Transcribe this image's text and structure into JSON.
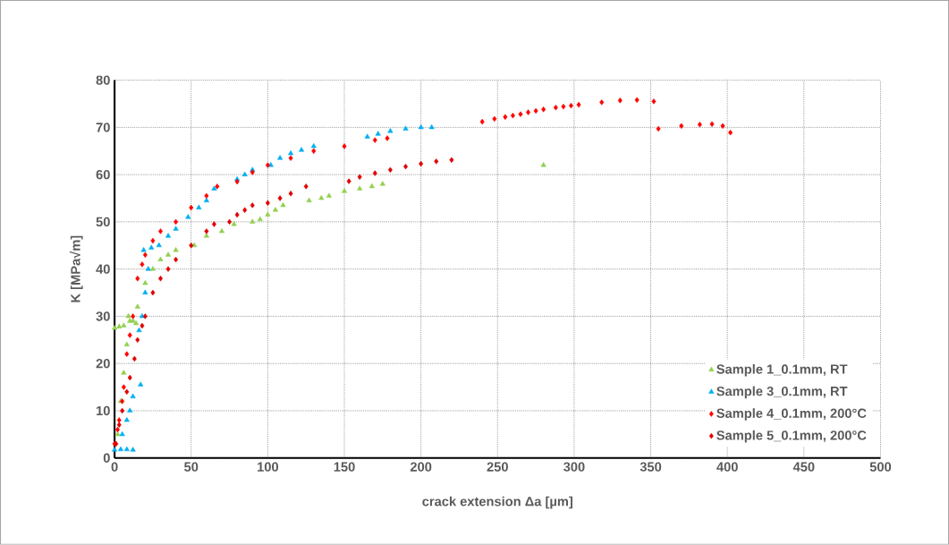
{
  "chart_data": {
    "type": "scatter",
    "xlabel": "crack extension Δa [µm]",
    "ylabel": "K [MPa√m]",
    "xlim": [
      0,
      500
    ],
    "ylim": [
      0,
      80
    ],
    "xticks": [
      0,
      50,
      100,
      150,
      200,
      250,
      300,
      350,
      400,
      450,
      500
    ],
    "yticks": [
      0,
      10,
      20,
      30,
      40,
      50,
      60,
      70,
      80
    ],
    "grid": true,
    "legend": "bottom right",
    "series": [
      {
        "name": "Sample 1_0.1mm, RT",
        "color": "#92d050",
        "marker": "triangle",
        "x": [
          2,
          4,
          6,
          8,
          10,
          0,
          3,
          6,
          9,
          12,
          14,
          15,
          20,
          25,
          30,
          35,
          40,
          52,
          60,
          70,
          78,
          90,
          95,
          100,
          105,
          110,
          127,
          135,
          140,
          150,
          160,
          168,
          175,
          280
        ],
        "values": [
          5,
          12,
          18,
          24,
          29,
          27.5,
          27.8,
          28,
          30,
          29,
          28.5,
          32,
          37,
          40,
          42,
          43,
          44,
          45,
          47,
          48,
          49.5,
          50,
          50.5,
          51.5,
          52.5,
          53.5,
          54.5,
          55,
          55.5,
          56.5,
          57,
          57.5,
          58,
          62
        ]
      },
      {
        "name": "Sample 3_0.1mm, RT",
        "color": "#00b0f0",
        "marker": "triangle",
        "x": [
          0,
          4,
          8,
          12,
          5,
          8,
          10,
          12,
          17,
          16,
          18,
          20,
          22,
          19,
          24,
          29,
          35,
          40,
          48,
          55,
          60,
          65,
          80,
          85,
          90,
          102,
          108,
          115,
          122,
          130,
          165,
          172,
          180,
          190,
          200,
          207
        ],
        "values": [
          1.7,
          1.8,
          1.8,
          1.7,
          5,
          8,
          10,
          13,
          15.5,
          27,
          30,
          35,
          40,
          44,
          44.5,
          45,
          47,
          48.5,
          51,
          53,
          54.5,
          57,
          59,
          60,
          61,
          62,
          63.5,
          64.5,
          65.2,
          66,
          68,
          68.6,
          69.2,
          69.7,
          70,
          70
        ]
      },
      {
        "name": "Sample 4_0.1mm, 200°C",
        "color": "#ff0000",
        "marker": "diamond",
        "x": [
          0,
          2,
          3,
          5,
          6,
          8,
          10,
          12,
          15,
          18,
          20,
          25,
          30,
          40,
          50,
          60,
          67,
          80,
          90,
          100,
          115,
          130,
          150,
          170,
          178,
          240,
          248,
          255,
          260,
          265,
          270,
          275,
          280,
          288,
          293,
          298,
          303,
          318,
          330,
          341,
          352,
          355,
          370,
          382,
          390,
          397,
          402
        ],
        "values": [
          3,
          6,
          8,
          12,
          15,
          22,
          26,
          30,
          38,
          41,
          43,
          46,
          48,
          50,
          53,
          55.5,
          57.5,
          58.5,
          60.5,
          62,
          63.5,
          65,
          66,
          67.3,
          67.7,
          71.2,
          71.8,
          72.2,
          72.5,
          72.8,
          73.2,
          73.5,
          73.8,
          74.2,
          74.4,
          74.6,
          74.8,
          75.3,
          75.7,
          75.8,
          75.5,
          69.7,
          70.3,
          70.6,
          70.7,
          70.3,
          68.9
        ]
      },
      {
        "name": "Sample 5_0.1mm, 200°C",
        "color": "#e00000",
        "marker": "diamond",
        "x": [
          1,
          3,
          5,
          8,
          10,
          13,
          15,
          18,
          20,
          25,
          30,
          35,
          40,
          50,
          60,
          65,
          75,
          80,
          85,
          90,
          100,
          108,
          115,
          125,
          153,
          160,
          170,
          180,
          190,
          200,
          210,
          220
        ],
        "values": [
          3,
          7,
          10,
          14,
          17,
          21,
          25,
          28,
          30,
          35,
          38,
          40,
          42,
          45,
          48,
          49.5,
          50,
          51.5,
          52.5,
          53.5,
          54,
          55,
          56,
          57.5,
          58.6,
          59.5,
          60.3,
          61,
          61.7,
          62.3,
          62.8,
          63.1
        ]
      }
    ]
  }
}
